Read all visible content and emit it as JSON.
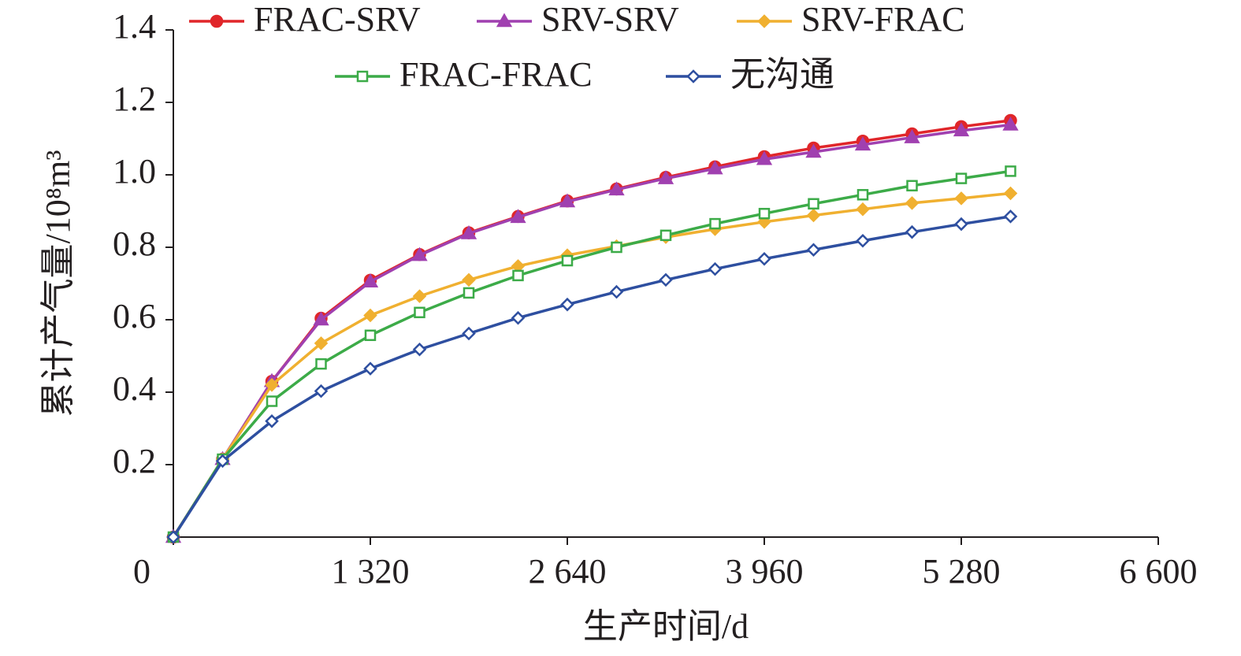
{
  "chart_data": {
    "type": "line",
    "x_label": "生产时间/d",
    "y_label": "累计产气量/10⁸m³",
    "x": [
      0,
      330,
      660,
      990,
      1320,
      1650,
      1980,
      2310,
      2640,
      2970,
      3300,
      3630,
      3960,
      4290,
      4620,
      4950,
      5280,
      5610
    ],
    "series": [
      {
        "name": "FRAC-SRV",
        "color": "#e0262a",
        "marker": "circle",
        "values": [
          0,
          0.215,
          0.43,
          0.604,
          0.709,
          0.78,
          0.84,
          0.885,
          0.928,
          0.961,
          0.993,
          1.022,
          1.05,
          1.074,
          1.093,
          1.113,
          1.133,
          1.15
        ]
      },
      {
        "name": "SRV-SRV",
        "color": "#a040b0",
        "marker": "triangle",
        "values": [
          0,
          0.215,
          0.43,
          0.6,
          0.705,
          0.778,
          0.838,
          0.883,
          0.926,
          0.959,
          0.99,
          1.017,
          1.043,
          1.063,
          1.083,
          1.103,
          1.122,
          1.138
        ]
      },
      {
        "name": "SRV-FRAC",
        "color": "#f0b030",
        "marker": "diamond",
        "values": [
          0,
          0.215,
          0.42,
          0.535,
          0.612,
          0.665,
          0.71,
          0.748,
          0.778,
          0.803,
          0.828,
          0.85,
          0.87,
          0.888,
          0.905,
          0.922,
          0.935,
          0.949
        ]
      },
      {
        "name": "FRAC-FRAC",
        "color": "#3cab48",
        "marker": "square-open",
        "values": [
          0,
          0.215,
          0.375,
          0.478,
          0.557,
          0.62,
          0.674,
          0.722,
          0.763,
          0.8,
          0.833,
          0.865,
          0.893,
          0.92,
          0.945,
          0.97,
          0.99,
          1.01
        ]
      },
      {
        "name": "无沟通",
        "color": "#2e4fa0",
        "marker": "diamond-open",
        "values": [
          0,
          0.21,
          0.32,
          0.403,
          0.465,
          0.518,
          0.562,
          0.605,
          0.642,
          0.677,
          0.71,
          0.74,
          0.768,
          0.793,
          0.818,
          0.842,
          0.864,
          0.885
        ]
      }
    ],
    "xlim": [
      0,
      6600
    ],
    "xticks": [
      0,
      {
        "value": 1320,
        "label": "1 320"
      },
      {
        "value": 2640,
        "label": "2 640"
      },
      {
        "value": 3960,
        "label": "3 960"
      },
      {
        "value": 5280,
        "label": "5 280"
      },
      {
        "value": 6600,
        "label": "6 600"
      }
    ],
    "ylim": [
      0,
      1.4
    ],
    "yticks": [
      0.2,
      0.4,
      0.6,
      0.8,
      {
        "value": 1,
        "label": "1.0"
      },
      1.2,
      1.4
    ],
    "grid": false,
    "legend": "top"
  }
}
